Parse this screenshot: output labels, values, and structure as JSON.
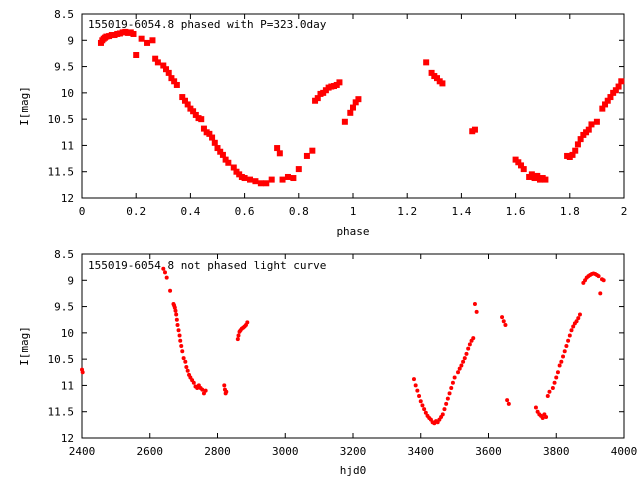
{
  "chart_data": [
    {
      "type": "scatter",
      "title": "155019-6054.8 phased with P=323.0day",
      "xlabel": "phase",
      "ylabel": "I[mag]",
      "xlim": [
        0,
        2
      ],
      "ylim": [
        8.5,
        12
      ],
      "y_inverted": true,
      "xticks": [
        "0",
        "0.2",
        "0.4",
        "0.6",
        "0.8",
        "1",
        "1.2",
        "1.4",
        "1.6",
        "1.8",
        "2"
      ],
      "yticks": [
        "8.5",
        "9",
        "9.5",
        "10",
        "10.5",
        "11",
        "11.5",
        "12"
      ],
      "color": "#ff0000",
      "marker": "square",
      "series": [
        {
          "x": [
            0.07,
            0.075,
            0.08,
            0.085,
            0.09,
            0.1,
            0.11,
            0.12,
            0.13,
            0.14,
            0.15,
            0.16,
            0.17,
            0.18,
            0.19,
            0.2,
            0.22,
            0.24,
            0.26,
            0.27,
            0.28,
            0.3,
            0.31,
            0.32,
            0.33,
            0.34,
            0.35,
            0.37,
            0.38,
            0.39,
            0.4,
            0.41,
            0.42,
            0.43,
            0.44,
            0.45,
            0.46,
            0.47,
            0.48,
            0.49,
            0.5,
            0.51,
            0.52,
            0.53,
            0.54,
            0.56,
            0.57,
            0.58,
            0.59,
            0.6,
            0.62,
            0.64,
            0.66,
            0.68,
            0.7,
            0.72,
            0.73,
            0.74,
            0.76,
            0.78,
            0.8,
            0.83,
            0.85,
            0.86,
            0.87,
            0.88,
            0.89,
            0.9,
            0.91,
            0.92,
            0.93,
            0.94,
            0.95,
            0.97,
            0.99,
            1.0,
            1.01,
            1.02,
            1.27,
            1.29,
            1.3,
            1.31,
            1.32,
            1.33,
            1.44,
            1.45,
            1.6,
            1.61,
            1.62,
            1.63,
            1.65,
            1.66,
            1.67,
            1.68,
            1.69,
            1.7,
            1.71,
            1.79,
            1.8,
            1.81,
            1.82,
            1.83,
            1.84,
            1.85,
            1.86,
            1.87,
            1.88,
            1.9,
            1.92,
            1.93,
            1.94,
            1.95,
            1.96,
            1.97,
            1.98,
            1.99
          ],
          "y": [
            9.05,
            9.0,
            8.97,
            8.95,
            8.93,
            8.92,
            8.9,
            8.9,
            8.88,
            8.87,
            8.85,
            8.84,
            8.86,
            8.85,
            8.88,
            9.28,
            8.97,
            9.05,
            9.0,
            9.35,
            9.42,
            9.48,
            9.55,
            9.62,
            9.72,
            9.78,
            9.85,
            10.08,
            10.15,
            10.22,
            10.3,
            10.35,
            10.42,
            10.48,
            10.5,
            10.68,
            10.75,
            10.78,
            10.85,
            10.95,
            11.05,
            11.12,
            11.18,
            11.27,
            11.33,
            11.42,
            11.5,
            11.55,
            11.6,
            11.62,
            11.65,
            11.68,
            11.72,
            11.72,
            11.65,
            11.05,
            11.15,
            11.65,
            11.6,
            11.62,
            11.45,
            11.2,
            11.1,
            10.15,
            10.1,
            10.02,
            10.0,
            9.95,
            9.9,
            9.88,
            9.87,
            9.85,
            9.8,
            10.55,
            10.38,
            10.28,
            10.18,
            10.12,
            9.42,
            9.62,
            9.68,
            9.72,
            9.78,
            9.82,
            10.73,
            10.7,
            11.27,
            11.32,
            11.38,
            11.45,
            11.6,
            11.55,
            11.62,
            11.58,
            11.65,
            11.62,
            11.65,
            11.2,
            11.22,
            11.18,
            11.1,
            10.98,
            10.88,
            10.8,
            10.75,
            10.7,
            10.6,
            10.55,
            10.3,
            10.22,
            10.15,
            10.08,
            10.0,
            9.95,
            9.88,
            9.78
          ]
        }
      ]
    },
    {
      "type": "scatter",
      "title": "155019-6054.8 not phased light curve",
      "xlabel": "hjd0",
      "ylabel": "I[mag]",
      "xlim": [
        2400,
        4000
      ],
      "ylim": [
        8.5,
        12
      ],
      "y_inverted": true,
      "xticks": [
        "2400",
        "2600",
        "2800",
        "3000",
        "3200",
        "3400",
        "3600",
        "3800",
        "4000"
      ],
      "yticks": [
        "8.5",
        "9",
        "9.5",
        "10",
        "10.5",
        "11",
        "11.5",
        "12"
      ],
      "color": "#ff0000",
      "marker": "dot",
      "series": [
        {
          "x": [
            2400,
            2402,
            2640,
            2645,
            2650,
            2660,
            2670,
            2672,
            2674,
            2676,
            2678,
            2680,
            2682,
            2685,
            2688,
            2690,
            2693,
            2696,
            2700,
            2705,
            2708,
            2712,
            2716,
            2720,
            2725,
            2730,
            2735,
            2740,
            2745,
            2750,
            2755,
            2760,
            2765,
            2820,
            2822,
            2824,
            2826,
            2860,
            2862,
            2865,
            2868,
            2872,
            2876,
            2880,
            2884,
            2888,
            3380,
            3385,
            3390,
            3395,
            3400,
            3405,
            3410,
            3415,
            3420,
            3425,
            3430,
            3435,
            3440,
            3445,
            3450,
            3455,
            3460,
            3465,
            3470,
            3475,
            3480,
            3485,
            3490,
            3495,
            3500,
            3510,
            3515,
            3520,
            3525,
            3530,
            3535,
            3540,
            3545,
            3550,
            3555,
            3560,
            3565,
            3640,
            3645,
            3650,
            3655,
            3660,
            3740,
            3745,
            3750,
            3755,
            3760,
            3765,
            3770,
            3775,
            3780,
            3790,
            3795,
            3800,
            3805,
            3810,
            3815,
            3820,
            3825,
            3830,
            3835,
            3840,
            3845,
            3850,
            3855,
            3860,
            3865,
            3870,
            3880,
            3885,
            3890,
            3895,
            3900,
            3905,
            3910,
            3915,
            3920,
            3925,
            3930,
            3935,
            3940
          ],
          "y": [
            10.7,
            10.75,
            8.78,
            8.85,
            8.95,
            9.2,
            9.45,
            9.48,
            9.52,
            9.58,
            9.65,
            9.75,
            9.85,
            9.95,
            10.05,
            10.15,
            10.25,
            10.35,
            10.48,
            10.55,
            10.65,
            10.72,
            10.8,
            10.85,
            10.9,
            10.95,
            11.02,
            11.05,
            11.0,
            11.05,
            11.08,
            11.15,
            11.1,
            11.0,
            11.08,
            11.15,
            11.12,
            10.12,
            10.05,
            9.98,
            9.95,
            9.92,
            9.9,
            9.88,
            9.85,
            9.8,
            10.88,
            11.0,
            11.1,
            11.2,
            11.3,
            11.38,
            11.45,
            11.52,
            11.58,
            11.62,
            11.65,
            11.7,
            11.72,
            11.68,
            11.7,
            11.65,
            11.6,
            11.55,
            11.45,
            11.35,
            11.25,
            11.15,
            11.05,
            10.95,
            10.85,
            10.75,
            10.68,
            10.62,
            10.55,
            10.48,
            10.4,
            10.3,
            10.22,
            10.15,
            10.1,
            9.45,
            9.6,
            9.7,
            9.78,
            9.85,
            11.28,
            11.35,
            11.42,
            11.5,
            11.55,
            11.58,
            11.62,
            11.55,
            11.6,
            11.2,
            11.12,
            11.05,
            10.95,
            10.85,
            10.75,
            10.62,
            10.55,
            10.45,
            10.35,
            10.25,
            10.15,
            10.05,
            9.95,
            9.88,
            9.82,
            9.78,
            9.72,
            9.65,
            9.05,
            9.0,
            8.95,
            8.92,
            8.9,
            8.88,
            8.87,
            8.88,
            8.9,
            8.92,
            9.25,
            8.98,
            9.0
          ]
        }
      ]
    }
  ]
}
